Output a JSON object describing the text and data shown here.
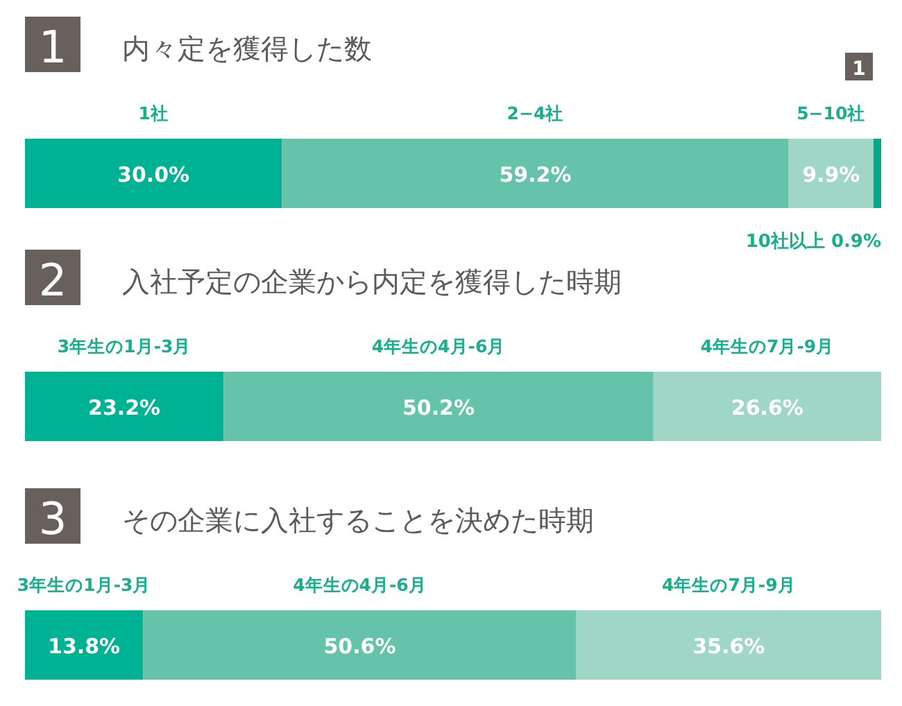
{
  "chart_data": [
    {
      "type": "bar",
      "orientation": "horizontal",
      "stacked": true,
      "title": "内々定を獲得した数",
      "annotations": [
        "1",
        "1"
      ],
      "categories": [
        null
      ],
      "xlim": [
        0,
        100
      ],
      "series": [
        {
          "name": "1社",
          "color": "#00b294",
          "values": [
            30.0
          ],
          "value_labels": [
            "30.0%"
          ]
        },
        {
          "name": "2−4社",
          "color": "#64c3a9",
          "values": [
            59.2
          ],
          "value_labels": [
            "59.2%"
          ]
        },
        {
          "name": "5−10社",
          "color": "#9fd6c6",
          "values": [
            9.9
          ],
          "value_labels": [
            "9.9%"
          ]
        },
        {
          "name": "10社以上",
          "color": "#00a88a",
          "values": [
            0.9
          ],
          "value_labels": [
            "0.9%"
          ]
        }
      ]
    },
    {
      "type": "bar",
      "orientation": "horizontal",
      "stacked": true,
      "title": "入社予定の企業から内定を獲得した時期",
      "annotations": [
        "2"
      ],
      "categories": [
        null
      ],
      "xlim": [
        0,
        100
      ],
      "series": [
        {
          "name": "3年生の1月-3月",
          "color": "#00b294",
          "values": [
            23.2
          ],
          "value_labels": [
            "23.2%"
          ]
        },
        {
          "name": "4年生の4月-6月",
          "color": "#64c3a9",
          "values": [
            50.2
          ],
          "value_labels": [
            "50.2%"
          ]
        },
        {
          "name": "4年生の7月-9月",
          "color": "#9fd6c6",
          "values": [
            26.6
          ],
          "value_labels": [
            "26.6%"
          ]
        }
      ]
    },
    {
      "type": "bar",
      "orientation": "horizontal",
      "stacked": true,
      "title": "その企業に入社することを決めた時期",
      "annotations": [
        "3"
      ],
      "categories": [
        null
      ],
      "xlim": [
        0,
        100
      ],
      "series": [
        {
          "name": "3年生の1月-3月",
          "color": "#00b294",
          "values": [
            13.8
          ],
          "value_labels": [
            "13.8%"
          ]
        },
        {
          "name": "4年生の4月-6月",
          "color": "#64c3a9",
          "values": [
            50.6
          ],
          "value_labels": [
            "50.6%"
          ]
        },
        {
          "name": "4年生の7月-9月",
          "color": "#9fd6c6",
          "values": [
            35.6
          ],
          "value_labels": [
            "35.6%"
          ]
        }
      ]
    }
  ]
}
